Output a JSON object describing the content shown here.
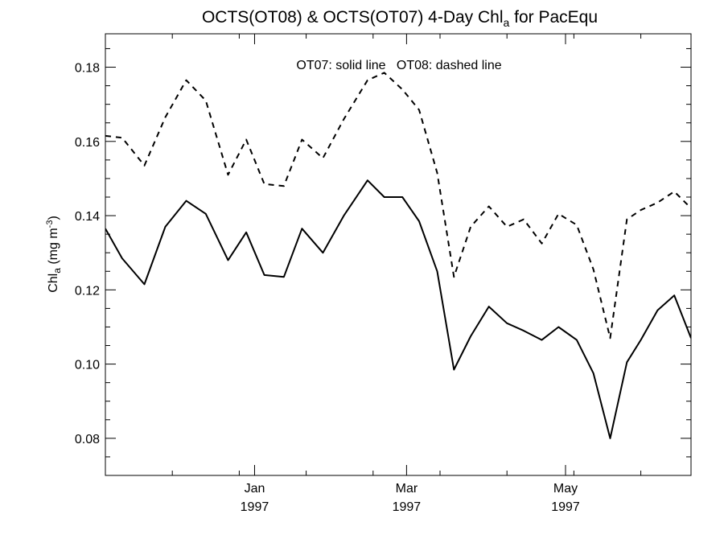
{
  "chart_data": {
    "type": "line",
    "title_main": "OCTS(OT08) & OCTS(OT07) 4-Day Chl",
    "title_sub": "a",
    "title_tail": " for PacEqu",
    "ylabel_main": "Chl",
    "ylabel_sub": "a",
    "ylabel_units": " (mg m",
    "ylabel_sup": "-3",
    "ylabel_close": ")",
    "annotation": "OT07: solid line   OT08: dashed line",
    "xlim": [
      0,
      42
    ],
    "ylim": [
      0.07,
      0.189
    ],
    "y_ticks": [
      0.08,
      0.1,
      0.12,
      0.14,
      0.16,
      0.18
    ],
    "y_tick_labels": [
      "0.08",
      "0.10",
      "0.12",
      "0.14",
      "0.16",
      "0.18"
    ],
    "x_ticks": [
      {
        "pos": 10.7,
        "month": "Jan",
        "year": "1997"
      },
      {
        "pos": 21.6,
        "month": "Mar",
        "year": "1997"
      },
      {
        "pos": 33.0,
        "month": "May",
        "year": "1997"
      }
    ],
    "series": [
      {
        "name": "OT07",
        "style": "solid",
        "x": [
          0,
          1.2,
          2.8,
          4.3,
          5.8,
          7.2,
          8.8,
          10.1,
          11.4,
          12.8,
          14.1,
          15.6,
          17.1,
          18.8,
          20.0,
          21.3,
          22.5,
          23.8,
          25.0,
          26.2,
          27.5,
          28.8,
          30.0,
          31.3,
          32.5,
          33.8,
          35.0,
          36.2,
          37.4,
          38.4,
          39.6,
          40.8,
          42.0
        ],
        "y": [
          0.1365,
          0.1285,
          0.1215,
          0.137,
          0.144,
          0.1405,
          0.128,
          0.1355,
          0.124,
          0.1235,
          0.1365,
          0.13,
          0.14,
          0.1495,
          0.145,
          0.145,
          0.1385,
          0.125,
          0.0985,
          0.1075,
          0.1155,
          0.111,
          0.109,
          0.1065,
          0.11,
          0.1065,
          0.0975,
          0.08,
          0.1005,
          0.1065,
          0.1145,
          0.1185,
          0.107
        ]
      },
      {
        "name": "OT08",
        "style": "dashed",
        "x": [
          0,
          1.2,
          2.8,
          4.3,
          5.8,
          7.2,
          8.8,
          10.1,
          11.4,
          12.8,
          14.1,
          15.6,
          17.1,
          18.8,
          20.0,
          21.3,
          22.5,
          23.8,
          25.0,
          26.2,
          27.5,
          28.8,
          30.0,
          31.3,
          32.5,
          33.8,
          35.0,
          36.2,
          37.4,
          38.4,
          39.6,
          40.8,
          42.0
        ],
        "y": [
          0.1615,
          0.161,
          0.1535,
          0.1665,
          0.1765,
          0.171,
          0.151,
          0.1605,
          0.1485,
          0.148,
          0.1605,
          0.1555,
          0.166,
          0.1765,
          0.1785,
          0.174,
          0.1685,
          0.1515,
          0.1235,
          0.137,
          0.1425,
          0.137,
          0.139,
          0.1325,
          0.1405,
          0.1375,
          0.1255,
          0.107,
          0.139,
          0.1415,
          0.1435,
          0.1465,
          0.142
        ]
      }
    ]
  }
}
